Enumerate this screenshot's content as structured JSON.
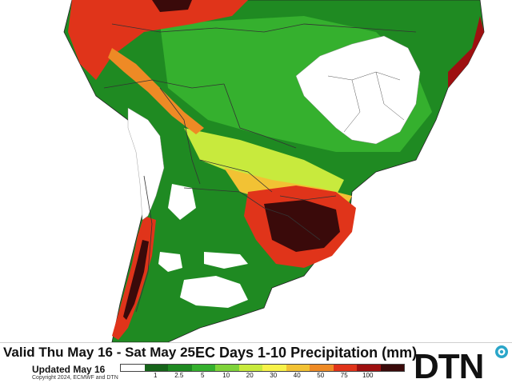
{
  "footer": {
    "valid_text": "Valid Thu May 16 - Sat May 25",
    "title": "EC Days 1-10 Precipitation (mm)",
    "updated": "Updated May 16",
    "copyright": "Copyright 2024, ECMWF and DTN"
  },
  "legend": {
    "colors": [
      "#ffffff",
      "#16641a",
      "#1f8a22",
      "#35b02e",
      "#7fd33a",
      "#c8ea3d",
      "#f7f24a",
      "#f2c234",
      "#ee8a25",
      "#e0341a",
      "#9e1010",
      "#3a0a0a"
    ],
    "ticks": [
      {
        "label": "1",
        "pos": 1
      },
      {
        "label": "2.5",
        "pos": 2
      },
      {
        "label": "5",
        "pos": 3
      },
      {
        "label": "10",
        "pos": 4
      },
      {
        "label": "20",
        "pos": 5
      },
      {
        "label": "30",
        "pos": 6
      },
      {
        "label": "40",
        "pos": 7
      },
      {
        "label": "50",
        "pos": 8
      },
      {
        "label": "75",
        "pos": 9
      },
      {
        "label": "100",
        "pos": 10
      }
    ]
  },
  "logo": {
    "text": "DTN",
    "text_color": "#111111",
    "accent_color": "#2aa6c9",
    "icon": "dtn-globe-icon"
  },
  "map": {
    "ocean_color": "#ffffff",
    "border_color": "#333333",
    "color_low": "#1f8a22",
    "color_mid": "#f7f24a",
    "color_high": "#e0341a",
    "color_extreme": "#3a0a0a"
  }
}
